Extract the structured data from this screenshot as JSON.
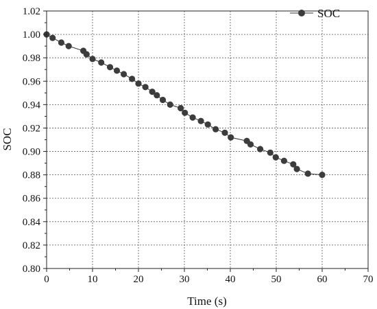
{
  "chart_data": {
    "type": "line",
    "title": "",
    "xlabel": "Time (s)",
    "ylabel": "SOC",
    "xlim": [
      0,
      70
    ],
    "ylim": [
      0.8,
      1.02
    ],
    "x_ticks": [
      0,
      10,
      20,
      30,
      40,
      50,
      60,
      70
    ],
    "x_tick_labels": [
      "0",
      "10",
      "20",
      "30",
      "40",
      "50",
      "60",
      "70"
    ],
    "y_ticks": [
      0.8,
      0.82,
      0.84,
      0.86,
      0.88,
      0.9,
      0.92,
      0.94,
      0.96,
      0.98,
      1.0,
      1.02
    ],
    "y_tick_labels": [
      "0.80",
      "0.82",
      "0.84",
      "0.86",
      "0.88",
      "0.90",
      "0.92",
      "0.94",
      "0.96",
      "0.98",
      "1.00",
      "1.02"
    ],
    "grid": true,
    "legend_position": "top-right",
    "line_color": "#333333",
    "marker_color": "#3c3c3c",
    "series": [
      {
        "name": "SOC",
        "x": [
          0,
          1.3,
          3.2,
          4.8,
          8,
          8.7,
          10,
          11.9,
          13.8,
          15.3,
          16.8,
          18.6,
          20,
          21.5,
          23,
          24,
          25.3,
          26.9,
          29.2,
          30.1,
          31.8,
          33.6,
          35.1,
          36.8,
          38.8,
          40.1,
          43.6,
          44.4,
          46.5,
          48.7,
          49.9,
          51.7,
          53.7,
          54.5,
          56.9,
          60
        ],
        "y": [
          1.0,
          0.997,
          0.993,
          0.99,
          0.986,
          0.983,
          0.979,
          0.976,
          0.972,
          0.969,
          0.966,
          0.962,
          0.958,
          0.955,
          0.951,
          0.948,
          0.944,
          0.94,
          0.937,
          0.933,
          0.929,
          0.926,
          0.923,
          0.919,
          0.916,
          0.912,
          0.909,
          0.906,
          0.902,
          0.899,
          0.895,
          0.892,
          0.889,
          0.885,
          0.881,
          0.88
        ]
      }
    ]
  }
}
